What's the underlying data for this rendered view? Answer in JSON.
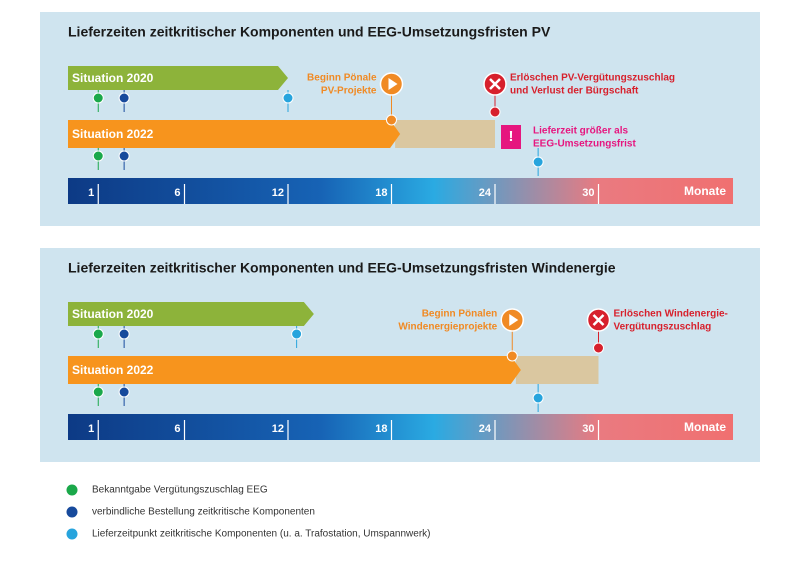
{
  "panels": [
    {
      "title": "Lieferzeiten zeitkritischer Komponenten und EEG-Umsetzungsfristen PV",
      "situations": [
        {
          "label": "Situation 2020",
          "end": 12,
          "pins": [
            1,
            2.5,
            12
          ]
        },
        {
          "label": "Situation 2022",
          "end": 18.5,
          "extension": 24,
          "pins": [
            1,
            2.5,
            26.5
          ]
        }
      ],
      "ticks": [
        1,
        6,
        12,
        18,
        24,
        30
      ],
      "unit": "Monate",
      "annotations": [
        {
          "kind": "start",
          "month": 18,
          "lines": [
            "Beginn Pönale",
            "PV-Projekte"
          ]
        },
        {
          "kind": "end",
          "month": 24,
          "lines": [
            "Erlöschen PV-Vergütungszuschlag",
            "und Verlust der Bürgschaft"
          ]
        },
        {
          "kind": "warn",
          "month": 26.5,
          "lines": [
            "Lieferzeit größer als",
            "EEG-Umsetzungsfrist"
          ]
        }
      ]
    },
    {
      "title": "Lieferzeiten zeitkritischer Komponenten und EEG-Umsetzungsfristen Windenergie",
      "situations": [
        {
          "label": "Situation 2020",
          "end": 13.5,
          "pins": [
            1,
            2.5,
            12.5
          ]
        },
        {
          "label": "Situation 2022",
          "end": 25.5,
          "extension": 30,
          "pins": [
            1,
            2.5,
            26.5
          ]
        }
      ],
      "ticks": [
        1,
        6,
        12,
        18,
        24,
        30
      ],
      "unit": "Monate",
      "annotations": [
        {
          "kind": "start",
          "month": 25,
          "lines": [
            "Beginn Pönalen",
            "Windenergieprojekte"
          ]
        },
        {
          "kind": "end",
          "month": 30,
          "lines": [
            "Erlöschen Windenergie-",
            "Vergütungszuschlag"
          ]
        }
      ]
    }
  ],
  "legend": [
    {
      "label": "Bekanntgabe Vergütungszuschlag EEG",
      "color": "#1aa84a"
    },
    {
      "label": "verbindliche Bestellung zeitkritische Komponenten",
      "color": "#174a9c"
    },
    {
      "label": "Lieferzeitpunkt zeitkritische Komponenten (u. a. Trafostation, Umspannwerk)",
      "color": "#27a4dd"
    }
  ]
}
